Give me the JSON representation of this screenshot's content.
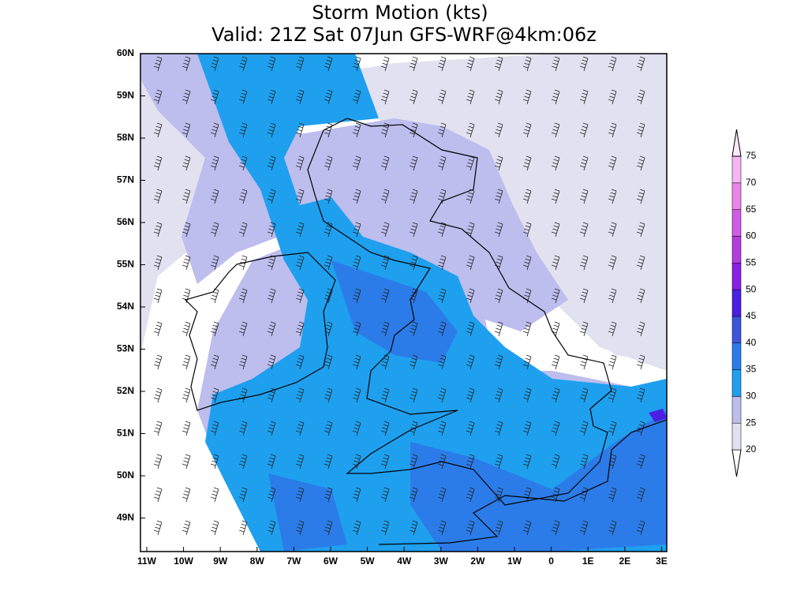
{
  "title": {
    "line1": "Storm Motion (kts)",
    "line2": "Valid: 21Z Sat 07Jun GFS-WRF@4km:06z"
  },
  "axes": {
    "lat_labels": [
      "60N",
      "59N",
      "58N",
      "57N",
      "56N",
      "55N",
      "54N",
      "53N",
      "52N",
      "51N",
      "50N",
      "49N"
    ],
    "lon_labels": [
      "11W",
      "10W",
      "9W",
      "8W",
      "7W",
      "6W",
      "5W",
      "4W",
      "3W",
      "2W",
      "1W",
      "0",
      "1E",
      "2E",
      "3E"
    ]
  },
  "colorbar": {
    "levels": [
      20,
      25,
      30,
      35,
      40,
      45,
      50,
      55,
      60,
      65,
      70,
      75
    ],
    "colors": [
      "#e1e1f0",
      "#bdbdee",
      "#1ea0ef",
      "#2b7ce8",
      "#3c55da",
      "#4a1fe2",
      "#8a1fe6",
      "#b43cdd",
      "#d25ae6",
      "#eb84eb",
      "#f6b6f6",
      "#fde8fd"
    ]
  }
}
